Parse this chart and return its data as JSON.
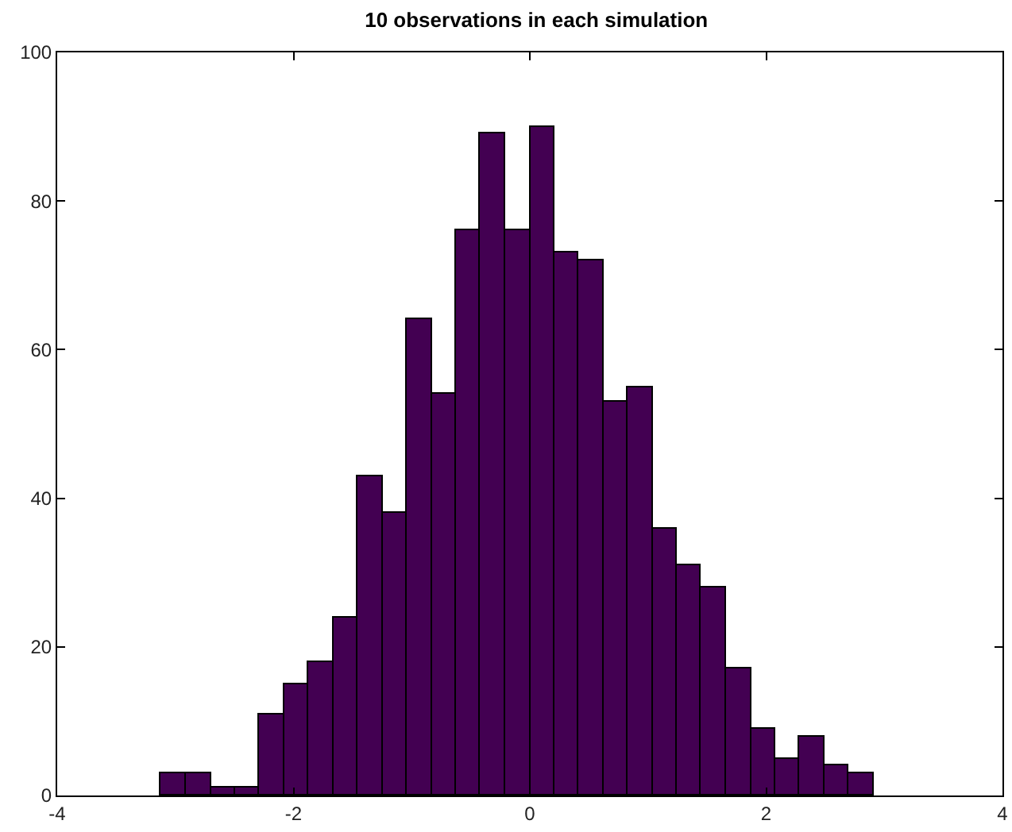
{
  "chart_data": {
    "type": "histogram",
    "title": "10 observations in each simulation",
    "bins": [
      -3.12,
      -2.91,
      -2.7,
      -2.49,
      -2.29,
      -2.08,
      -1.87,
      -1.66,
      -1.46,
      -1.25,
      -1.04,
      -0.83,
      -0.62,
      -0.42,
      -0.21,
      0.0,
      0.21,
      0.41,
      0.62,
      0.83,
      1.04,
      1.25,
      1.45,
      1.66,
      1.87,
      2.08,
      2.28,
      2.49,
      2.7,
      2.91
    ],
    "values": [
      3,
      3,
      1,
      1,
      11,
      15,
      18,
      24,
      43,
      38,
      64,
      54,
      76,
      89,
      76,
      90,
      73,
      72,
      53,
      55,
      36,
      31,
      28,
      17,
      9,
      5,
      8,
      4,
      3
    ],
    "color": "#430052",
    "xlim": [
      -4,
      4
    ],
    "xticks": [
      -4,
      -2,
      0,
      2,
      4
    ],
    "ylim": [
      0,
      100
    ],
    "yticks": [
      0,
      20,
      40,
      60,
      80,
      100
    ],
    "grid": false,
    "legend": false
  }
}
